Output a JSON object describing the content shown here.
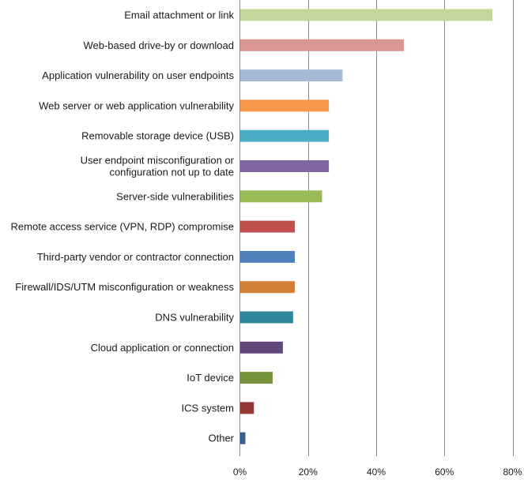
{
  "chart_data": {
    "type": "bar",
    "orientation": "horizontal",
    "categories": [
      "Email attachment or link",
      "Web-based drive-by or download",
      "Application vulnerability on user endpoints",
      "Web server or web application vulnerability",
      "Removable storage device (USB)",
      "User endpoint misconfiguration or configuration not up to date",
      "Server-side vulnerabilities",
      "Remote access service (VPN, RDP) compromise",
      "Third-party vendor or contractor connection",
      "Firewall/IDS/UTM misconfiguration or weakness",
      "DNS vulnerability",
      "Cloud application or connection",
      "IoT device",
      "ICS system",
      "Other"
    ],
    "label_lines": [
      [
        "Email attachment or link"
      ],
      [
        "Web-based drive-by or download"
      ],
      [
        "Application vulnerability on user endpoints"
      ],
      [
        "Web server or web application vulnerability"
      ],
      [
        "Removable storage device (USB)"
      ],
      [
        "User endpoint misconfiguration or",
        "configuration not up to date"
      ],
      [
        "Server-side vulnerabilities"
      ],
      [
        "Remote access service (VPN, RDP) compromise"
      ],
      [
        "Third-party vendor or contractor connection"
      ],
      [
        "Firewall/IDS/UTM misconfiguration or weakness"
      ],
      [
        "DNS vulnerability"
      ],
      [
        "Cloud application or connection"
      ],
      [
        "IoT device"
      ],
      [
        "ICS system"
      ],
      [
        "Other"
      ]
    ],
    "values": [
      74,
      48,
      30,
      26,
      26,
      26,
      24,
      16,
      16,
      16,
      15.5,
      12.5,
      9.5,
      4,
      1.5
    ],
    "colors": [
      "#c3d69b",
      "#d99694",
      "#a6b9d9",
      "#f79646",
      "#4bacc6",
      "#8064a2",
      "#9bbb59",
      "#c0504d",
      "#4f81bd",
      "#d47f37",
      "#31859c",
      "#60497a",
      "#77933c",
      "#953735",
      "#376092"
    ],
    "xlim": [
      0,
      80
    ],
    "xticks": [
      0,
      20,
      40,
      60,
      80
    ],
    "xtick_labels": [
      "0%",
      "20%",
      "40%",
      "60%",
      "80%"
    ],
    "grid": true,
    "legend": "none",
    "gridline_color": "#8c8c8c"
  }
}
